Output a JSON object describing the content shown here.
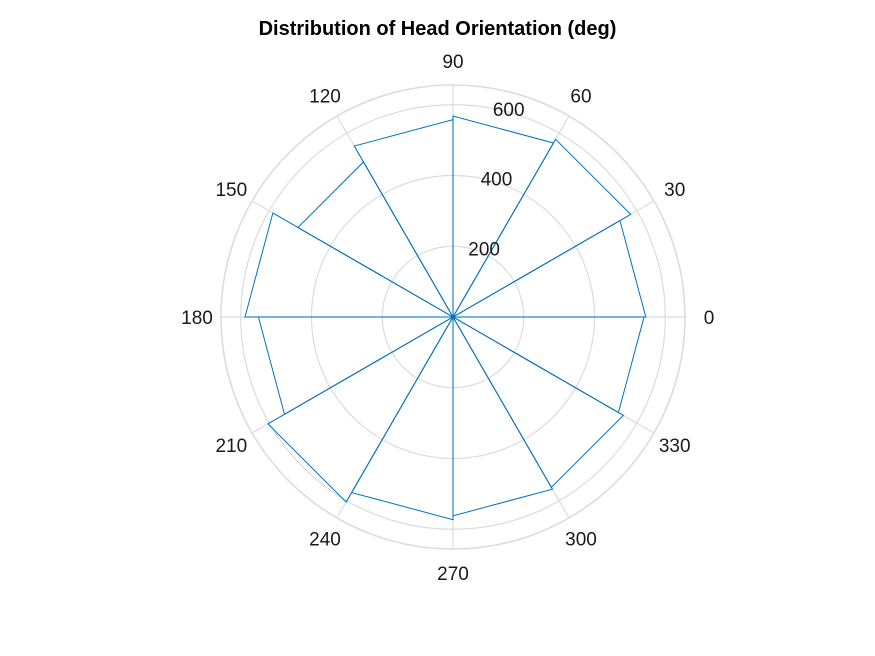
{
  "chart_data": {
    "type": "polar-histogram",
    "title": "Distribution of Head Orientation (deg)",
    "theta_ticks": [
      0,
      30,
      60,
      90,
      120,
      150,
      180,
      210,
      240,
      270,
      300,
      330
    ],
    "r_ticks": [
      200,
      400,
      600
    ],
    "r_lim": [
      0,
      600
    ],
    "bin_width_deg": 30,
    "bins": [
      {
        "start": 0,
        "end": 30,
        "value": 545
      },
      {
        "start": 30,
        "end": 60,
        "value": 580
      },
      {
        "start": 60,
        "end": 90,
        "value": 568
      },
      {
        "start": 90,
        "end": 120,
        "value": 558
      },
      {
        "start": 120,
        "end": 150,
        "value": 506
      },
      {
        "start": 150,
        "end": 180,
        "value": 588
      },
      {
        "start": 180,
        "end": 210,
        "value": 550
      },
      {
        "start": 210,
        "end": 240,
        "value": 604
      },
      {
        "start": 240,
        "end": 270,
        "value": 573
      },
      {
        "start": 270,
        "end": 300,
        "value": 562
      },
      {
        "start": 300,
        "end": 330,
        "value": 556
      },
      {
        "start": 330,
        "end": 360,
        "value": 540
      }
    ],
    "bar_color": "#0072BD",
    "grid_color": "#DCDCDC",
    "grid": true
  }
}
